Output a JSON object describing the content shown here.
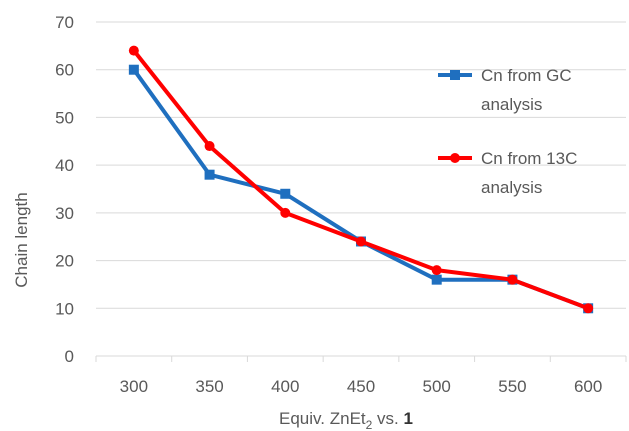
{
  "chart_data": {
    "type": "line",
    "title": "",
    "xlabel": "Equiv. ZnEt",
    "xlabel_subscript": "2",
    "xlabel_suffix": " vs. ",
    "xlabel_bold": "1",
    "ylabel": "Chain length",
    "x": [
      300,
      350,
      400,
      450,
      500,
      550,
      600
    ],
    "categories": [
      "300",
      "350",
      "400",
      "450",
      "500",
      "550",
      "600"
    ],
    "ylim": [
      0,
      70
    ],
    "yticks": [
      0,
      10,
      20,
      30,
      40,
      50,
      60,
      70
    ],
    "grid": true,
    "legend_position": "right",
    "series": [
      {
        "name": "Cn from GC analysis",
        "name_lines": [
          "Cn from GC",
          "analysis"
        ],
        "color": "#1f6fbf",
        "marker": "square",
        "values": [
          60,
          38,
          34,
          24,
          16,
          16,
          10
        ]
      },
      {
        "name": "Cn from 13C analysis",
        "name_lines": [
          "Cn from 13C",
          "analysis"
        ],
        "color": "#ff0000",
        "marker": "circle",
        "values": [
          64,
          44,
          30,
          24,
          18,
          16,
          10
        ]
      }
    ]
  }
}
